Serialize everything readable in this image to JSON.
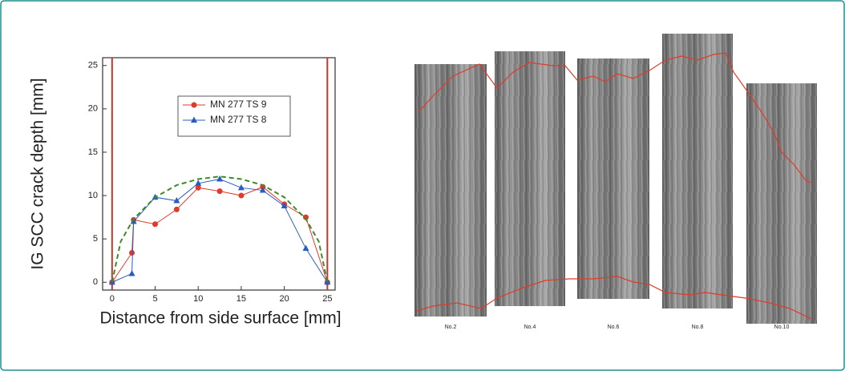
{
  "chart_data": {
    "type": "line",
    "y_label": "IG SCC crack depth   [mm]",
    "x_label": "Distance from side surface   [mm]",
    "xlim": [
      -1.1,
      25.9
    ],
    "ylim": [
      -0.9,
      25.9
    ],
    "xticks": [
      0,
      5,
      10,
      15,
      20,
      25
    ],
    "yticks": [
      0,
      5,
      10,
      15,
      20,
      25
    ],
    "series": [
      {
        "name": "MN 277 TS 9",
        "color": "#e03a2a",
        "marker": "circle",
        "x": [
          0,
          2.3,
          2.5,
          5,
          7.5,
          10,
          12.5,
          15,
          17.5,
          20,
          22.5,
          25
        ],
        "values": [
          0,
          3.4,
          7.2,
          6.7,
          8.4,
          10.9,
          10.5,
          10,
          11,
          9,
          7.5,
          0
        ]
      },
      {
        "name": "MN 277 TS 8",
        "color": "#2a5cc0",
        "marker": "triangle",
        "x": [
          0,
          2.3,
          2.5,
          5,
          7.5,
          10,
          12.5,
          15,
          17.5,
          20,
          22.5,
          25
        ],
        "values": [
          0,
          1.0,
          7,
          9.8,
          9.4,
          11.4,
          11.9,
          10.9,
          10.6,
          8.8,
          3.9,
          0
        ]
      },
      {
        "color": "#3d8a2a",
        "dashed": true,
        "x": [
          0,
          1,
          2.5,
          5,
          7.5,
          10,
          12.5,
          15,
          17.5,
          20,
          22.5,
          24,
          25
        ],
        "values": [
          0,
          4.7,
          7.3,
          9.8,
          11.2,
          11.9,
          12.2,
          11.9,
          11.2,
          9.8,
          7.3,
          4.7,
          0
        ]
      }
    ]
  },
  "micrographs": [
    "No.2",
    "No.4",
    "No.6",
    "No.8",
    "No.10"
  ]
}
